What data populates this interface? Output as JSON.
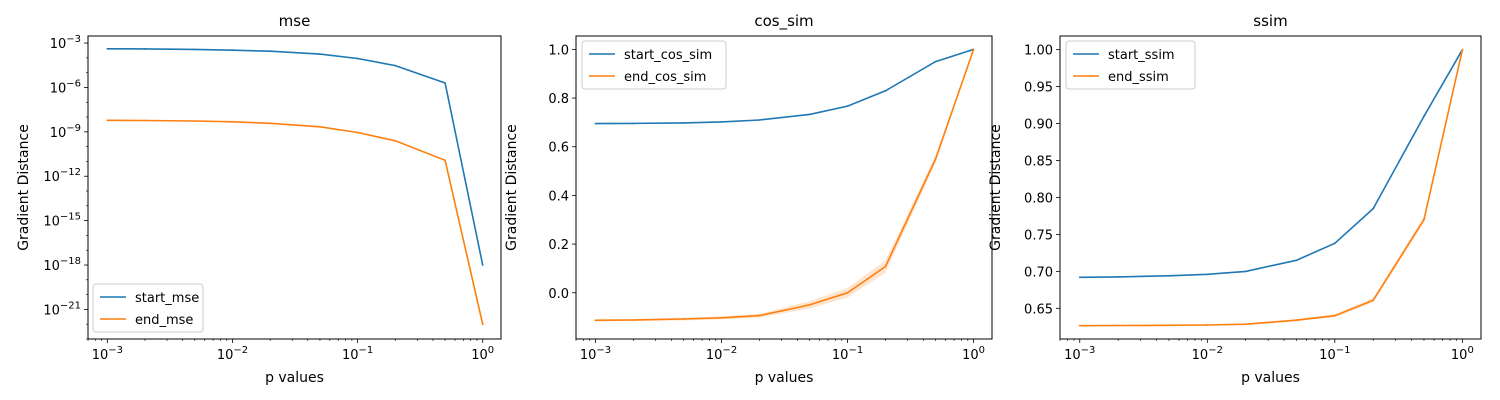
{
  "chart_data": [
    {
      "type": "line",
      "title": "mse",
      "xlabel": "p values",
      "ylabel": "Gradient Distance",
      "xscale": "log",
      "yscale": "log",
      "xlim": [
        0.0007,
        1.4
      ],
      "ylim": [
        1e-23,
        0.003
      ],
      "x_ticks": [
        0.001,
        0.01,
        0.1,
        1
      ],
      "x_tick_labels": [
        "10^-3",
        "10^-2",
        "10^-1",
        "10^0"
      ],
      "y_ticks": [
        1e-21,
        1e-18,
        1e-15,
        1e-12,
        1e-09,
        1e-06,
        0.001
      ],
      "y_tick_labels": [
        "10^-21",
        "10^-18",
        "10^-15",
        "10^-12",
        "10^-9",
        "10^-6",
        "10^-3"
      ],
      "grid": false,
      "legend_position": "lower-left",
      "x": [
        0.001,
        0.002,
        0.005,
        0.01,
        0.02,
        0.05,
        0.1,
        0.2,
        0.5,
        1
      ],
      "series": [
        {
          "name": "start_mse",
          "color": "#1f77b4",
          "values": [
            0.00041,
            0.0004,
            0.00037,
            0.00033,
            0.00028,
            0.00018,
            9e-05,
            3e-05,
            2e-06,
            1e-18
          ]
        },
        {
          "name": "end_mse",
          "color": "#ff7f0e",
          "values": [
            6e-09,
            5.8e-09,
            5.4e-09,
            4.8e-09,
            3.8e-09,
            2.2e-09,
            9e-10,
            2.5e-10,
            1.2e-11,
            1e-22
          ]
        }
      ]
    },
    {
      "type": "line",
      "title": "cos_sim",
      "xlabel": "p values",
      "ylabel": "Gradient Distance",
      "xscale": "log",
      "yscale": "linear",
      "xlim": [
        0.0007,
        1.4
      ],
      "ylim": [
        -0.19,
        1.055
      ],
      "x_ticks": [
        0.001,
        0.01,
        0.1,
        1
      ],
      "x_tick_labels": [
        "10^-3",
        "10^-2",
        "10^-1",
        "10^0"
      ],
      "y_ticks": [
        0.0,
        0.2,
        0.4,
        0.6,
        0.8,
        1.0
      ],
      "y_tick_labels": [
        "0.0",
        "0.2",
        "0.4",
        "0.6",
        "0.8",
        "1.0"
      ],
      "grid": false,
      "legend_position": "upper-left",
      "x": [
        0.001,
        0.002,
        0.005,
        0.01,
        0.02,
        0.05,
        0.1,
        0.2,
        0.5,
        1
      ],
      "series": [
        {
          "name": "start_cos_sim",
          "color": "#1f77b4",
          "values": [
            0.695,
            0.696,
            0.698,
            0.702,
            0.71,
            0.733,
            0.767,
            0.83,
            0.95,
            1.0
          ],
          "band": [
            0.0,
            0.0,
            0.0,
            0.0,
            0.0,
            0.0,
            0.0,
            0.0,
            0.0,
            0.0
          ]
        },
        {
          "name": "end_cos_sim",
          "color": "#ff7f0e",
          "values": [
            -0.113,
            -0.112,
            -0.108,
            -0.103,
            -0.094,
            -0.05,
            0.0,
            0.108,
            0.55,
            1.0
          ],
          "band": [
            0.004,
            0.004,
            0.006,
            0.006,
            0.008,
            0.015,
            0.02,
            0.025,
            0.015,
            0.0
          ]
        }
      ]
    },
    {
      "type": "line",
      "title": "ssim",
      "xlabel": "p values",
      "ylabel": "Gradient Distance",
      "xscale": "log",
      "yscale": "linear",
      "xlim": [
        0.0007,
        1.4
      ],
      "ylim": [
        0.6085,
        1.0185
      ],
      "x_ticks": [
        0.001,
        0.01,
        0.1,
        1
      ],
      "x_tick_labels": [
        "10^-3",
        "10^-2",
        "10^-1",
        "10^0"
      ],
      "y_ticks": [
        0.65,
        0.7,
        0.75,
        0.8,
        0.85,
        0.9,
        0.95,
        1.0
      ],
      "y_tick_labels": [
        "0.65",
        "0.70",
        "0.75",
        "0.80",
        "0.85",
        "0.90",
        "0.95",
        "1.00"
      ],
      "grid": false,
      "legend_position": "upper-left",
      "x": [
        0.001,
        0.002,
        0.005,
        0.01,
        0.02,
        0.05,
        0.1,
        0.2,
        0.5,
        1
      ],
      "series": [
        {
          "name": "start_ssim",
          "color": "#1f77b4",
          "values": [
            0.692,
            0.6925,
            0.694,
            0.696,
            0.7,
            0.715,
            0.738,
            0.785,
            0.91,
            1.0
          ],
          "band": [
            0.0,
            0.0,
            0.0,
            0.0,
            0.0,
            0.0,
            0.0,
            0.0,
            0.0,
            0.0
          ]
        },
        {
          "name": "end_ssim",
          "color": "#ff7f0e",
          "values": [
            0.6265,
            0.6267,
            0.627,
            0.6275,
            0.6285,
            0.634,
            0.64,
            0.661,
            0.77,
            1.0
          ],
          "band": [
            0.001,
            0.001,
            0.001,
            0.001,
            0.001,
            0.0015,
            0.002,
            0.003,
            0.004,
            0.0
          ]
        }
      ]
    }
  ]
}
